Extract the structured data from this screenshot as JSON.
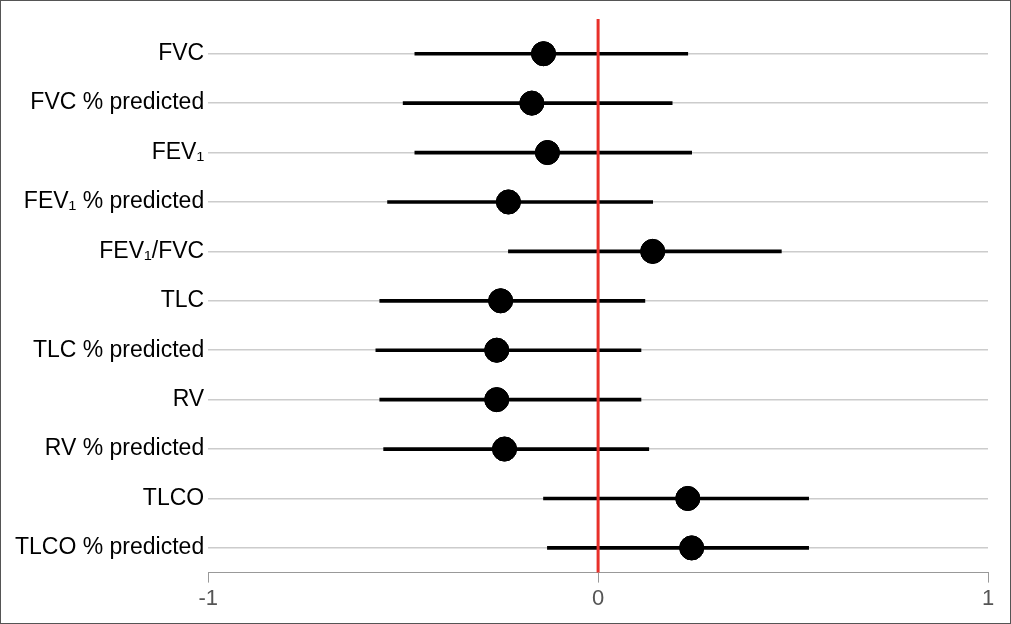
{
  "chart_data": {
    "type": "forest",
    "orientation": "horizontal",
    "categories": [
      "FVC",
      "FVC % predicted",
      "FEV₁",
      "FEV₁ % predicted",
      "FEV₁/FVC",
      "TLC",
      "TLC % predicted",
      "RV",
      "RV % predicted",
      "TLCO",
      "TLCO % predicted"
    ],
    "values": [
      -0.14,
      -0.17,
      -0.13,
      -0.23,
      0.14,
      -0.25,
      -0.26,
      -0.26,
      -0.24,
      0.23,
      0.24
    ],
    "ci_lower": [
      -0.47,
      -0.5,
      -0.47,
      -0.54,
      -0.23,
      -0.56,
      -0.57,
      -0.56,
      -0.55,
      -0.14,
      -0.13
    ],
    "ci_upper": [
      0.23,
      0.19,
      0.24,
      0.14,
      0.47,
      0.12,
      0.11,
      0.11,
      0.13,
      0.54,
      0.54
    ],
    "color": "#000000",
    "reference_line": 0,
    "xlim": [
      -1,
      1
    ],
    "xticks": [
      -1,
      0,
      1
    ],
    "grid": true
  }
}
